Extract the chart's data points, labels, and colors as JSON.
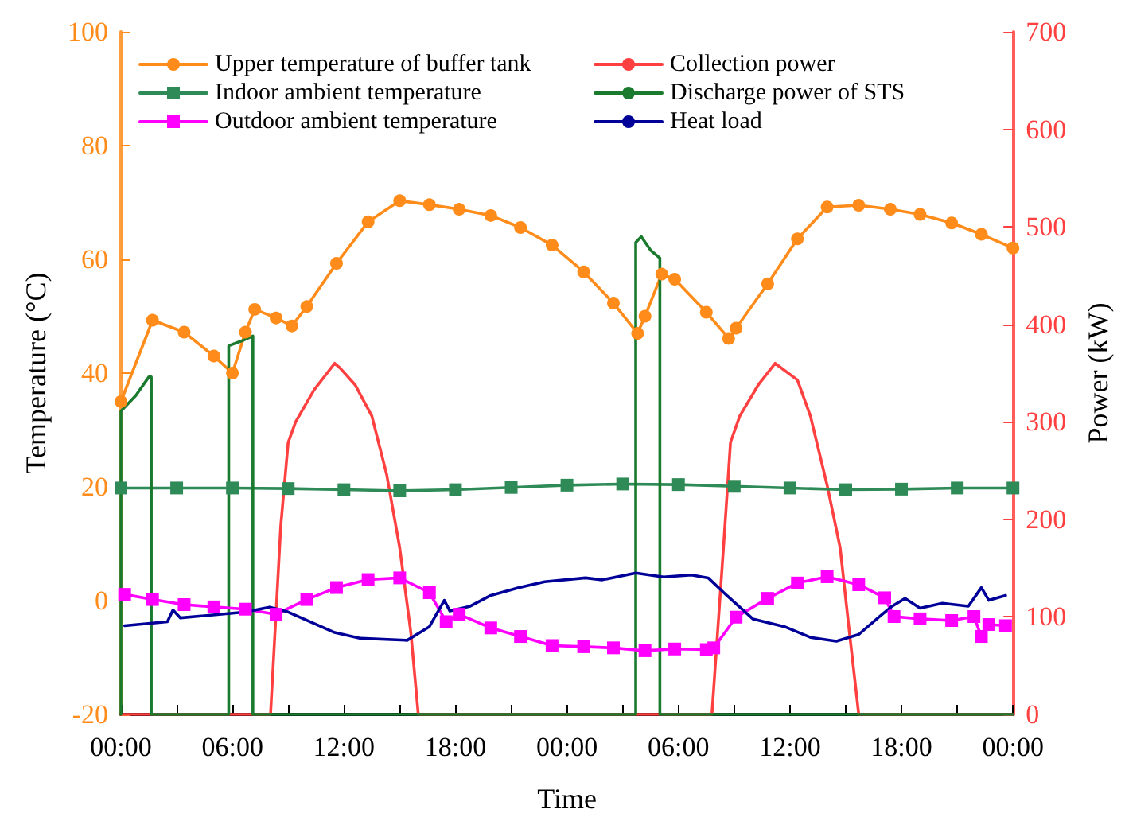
{
  "chart_data": {
    "type": "line",
    "xlabel": "Time",
    "ylabel": "Temperature (°C)",
    "y2label": "Power (kW)",
    "legend": "top",
    "grid": false,
    "xlim": [
      "--01-01T00:00",
      "--01-03T00:00"
    ],
    "xticks": [
      {
        "value": "--01-01T00:00",
        "label": "00:00"
      },
      {
        "value": "--01-01T03:00",
        "label": null
      },
      {
        "value": "--01-01T06:00",
        "label": "06:00"
      },
      {
        "value": "--01-01T09:00",
        "label": null
      },
      {
        "value": "--01-01T12:00",
        "label": "12:00"
      },
      {
        "value": "--01-01T15:00",
        "label": null
      },
      {
        "value": "--01-01T18:00",
        "label": "18:00"
      },
      {
        "value": "--01-01T21:00",
        "label": null
      },
      {
        "value": "--01-02T00:00",
        "label": "00:00"
      },
      {
        "value": "--01-02T03:00",
        "label": null
      },
      {
        "value": "--01-02T06:00",
        "label": "06:00"
      },
      {
        "value": "--01-02T09:00",
        "label": null
      },
      {
        "value": "--01-02T12:00",
        "label": "12:00"
      },
      {
        "value": "--01-02T15:00",
        "label": null
      },
      {
        "value": "--01-02T18:00",
        "label": "18:00"
      },
      {
        "value": "--01-02T21:00",
        "label": null
      },
      {
        "value": "--01-03T00:00",
        "label": "00:00"
      }
    ],
    "ylim": [
      -20,
      100
    ],
    "yticks": [
      -20,
      0,
      20,
      40,
      60,
      80,
      100
    ],
    "y2lim": [
      0,
      700
    ],
    "y2ticks": [
      0,
      100,
      200,
      300,
      400,
      500,
      600,
      700
    ],
    "series": [
      {
        "name": "Upper temperature of buffer tank",
        "color": "#ff8c1a",
        "marker": "circle",
        "x": [
          "--01-01T00:00",
          "--01-01T01:42",
          "--01-01T03:24",
          "--01-01T05:00",
          "--01-01T06:00",
          "--01-01T06:42",
          "--01-01T07:12",
          "--01-01T08:21",
          "--01-01T09:12",
          "--01-01T10:00",
          "--01-01T11:36",
          "--01-01T13:18",
          "--01-01T15:00",
          "--01-01T16:36",
          "--01-01T18:12",
          "--01-01T19:54",
          "--01-01T21:30",
          "--01-01T23:12",
          "--01-02T00:54",
          "--01-02T02:30",
          "--01-02T03:48",
          "--01-02T04:12",
          "--01-02T05:06",
          "--01-02T05:48",
          "--01-02T07:30",
          "--01-02T08:42",
          "--01-02T09:06",
          "--01-02T10:48",
          "--01-02T12:24",
          "--01-02T14:00",
          "--01-02T15:42",
          "--01-02T17:24",
          "--01-02T19:00",
          "--01-02T20:42",
          "--01-02T22:18",
          "--01-03T00:00"
        ],
        "values": [
          35,
          49.3,
          47.2,
          43,
          40,
          47.2,
          51.2,
          49.7,
          48.3,
          51.7,
          59.3,
          66.6,
          70.3,
          69.6,
          68.8,
          67.7,
          65.6,
          62.5,
          57.8,
          52.3,
          47,
          50,
          57.4,
          56.5,
          50.7,
          46.1,
          47.9,
          55.7,
          63.6,
          69.2,
          69.5,
          68.8,
          67.9,
          66.4,
          64.4,
          62
        ]
      },
      {
        "name": "Collection power",
        "color": "#ff4040",
        "axis": "y2",
        "marker": "none",
        "x": [
          "--01-01T00:00",
          "--01-01T08:03",
          "--01-01T08:36",
          "--01-01T09:00",
          "--01-01T09:24",
          "--01-01T10:24",
          "--01-01T11:30",
          "--01-01T11:48",
          "--01-01T12:36",
          "--01-01T13:30",
          "--01-01T14:18",
          "--01-01T15:00",
          "--01-01T15:36",
          "--01-01T16:00",
          "--01-02T07:48",
          "--01-02T08:24",
          "--01-02T08:48",
          "--01-02T09:18",
          "--01-02T10:18",
          "--01-02T11:12",
          "--01-02T12:24",
          "--01-02T13:06",
          "--01-02T14:00",
          "--01-02T14:42",
          "--01-02T15:12",
          "--01-02T15:42",
          "--01-03T00:00"
        ],
        "values": [
          0,
          0,
          193,
          279,
          300,
          333,
          360,
          355,
          338,
          306,
          246,
          171,
          84,
          0,
          0,
          165,
          279,
          306,
          338,
          360,
          343,
          306,
          235,
          171,
          84,
          0,
          0
        ]
      },
      {
        "name": "Indoor ambient temperature",
        "color": "#2e8b57",
        "marker": "square",
        "x": [
          "--01-01T00:00",
          "--01-01T03:00",
          "--01-01T06:00",
          "--01-01T09:00",
          "--01-01T12:00",
          "--01-01T15:00",
          "--01-01T18:00",
          "--01-01T21:00",
          "--01-02T00:00",
          "--01-02T03:00",
          "--01-02T06:00",
          "--01-02T09:00",
          "--01-02T12:00",
          "--01-02T15:00",
          "--01-02T18:00",
          "--01-02T21:00",
          "--01-03T00:00"
        ],
        "values": [
          19.8,
          19.8,
          19.8,
          19.7,
          19.5,
          19.3,
          19.5,
          19.9,
          20.3,
          20.5,
          20.4,
          20.1,
          19.8,
          19.5,
          19.6,
          19.8,
          19.8
        ]
      },
      {
        "name": "Discharge power of STS",
        "color": "#1a7a2e",
        "axis": "y2",
        "marker": "none",
        "x": [
          "--01-01T00:00",
          "--01-01T00:00",
          "--01-01T00:48",
          "--01-01T01:30",
          "--01-01T01:38",
          "--01-01T01:38",
          "--01-01T05:48",
          "--01-01T05:48",
          "--01-01T06:30",
          "--01-01T07:06",
          "--01-01T07:06",
          "--01-02T03:42",
          "--01-02T03:42",
          "--01-02T04:00",
          "--01-02T04:30",
          "--01-02T05:00",
          "--01-02T05:00",
          "--01-03T00:00"
        ],
        "values": [
          0,
          311,
          327,
          346,
          346,
          0,
          0,
          378,
          383,
          388,
          0,
          0,
          484,
          490,
          476,
          468,
          0,
          0
        ]
      },
      {
        "name": "Outdoor ambient temperature",
        "color": "#ff00ff",
        "marker": "square",
        "x": [
          "--01-01T00:12",
          "--01-01T01:42",
          "--01-01T03:24",
          "--01-01T05:00",
          "--01-01T06:42",
          "--01-01T08:21",
          "--01-01T10:00",
          "--01-01T11:36",
          "--01-01T13:18",
          "--01-01T15:00",
          "--01-01T16:36",
          "--01-01T17:30",
          "--01-01T18:12",
          "--01-01T19:54",
          "--01-01T21:30",
          "--01-01T23:12",
          "--01-02T00:54",
          "--01-02T02:30",
          "--01-02T04:12",
          "--01-02T05:48",
          "--01-02T07:30",
          "--01-02T07:54",
          "--01-02T09:06",
          "--01-02T10:48",
          "--01-02T12:24",
          "--01-02T14:00",
          "--01-02T15:42",
          "--01-02T17:06",
          "--01-02T17:36",
          "--01-02T19:00",
          "--01-02T20:42",
          "--01-02T21:54",
          "--01-02T22:18",
          "--01-02T22:42",
          "--01-02T23:36"
        ],
        "values": [
          1.1,
          0.2,
          -0.7,
          -1.1,
          -1.5,
          -2.4,
          0.2,
          2.3,
          3.7,
          4.0,
          1.4,
          -3.7,
          -2.4,
          -4.8,
          -6.3,
          -7.9,
          -8.1,
          -8.3,
          -8.8,
          -8.5,
          -8.6,
          -8.3,
          -2.9,
          0.4,
          3.1,
          4.2,
          2.8,
          0.5,
          -2.8,
          -3.2,
          -3.5,
          -2.8,
          -6.3,
          -4.2,
          -4.4
        ]
      },
      {
        "name": "Heat load",
        "color": "#000099",
        "axis": "y2",
        "marker": "none",
        "x": [
          "--01-01T00:12",
          "--01-01T02:30",
          "--01-01T02:48",
          "--01-01T03:12",
          "--01-01T06:42",
          "--01-01T08:00",
          "--01-01T09:00",
          "--01-01T11:30",
          "--01-01T12:54",
          "--01-01T15:24",
          "--01-01T16:36",
          "--01-01T17:24",
          "--01-01T17:42",
          "--01-01T18:48",
          "--01-01T19:54",
          "--01-01T21:24",
          "--01-01T22:48",
          "--01-02T01:00",
          "--01-02T01:54",
          "--01-02T03:42",
          "--01-02T05:12",
          "--01-02T06:42",
          "--01-02T07:36",
          "--01-02T08:36",
          "--01-02T10:00",
          "--01-02T11:42",
          "--01-02T13:06",
          "--01-02T14:30",
          "--01-02T15:42",
          "--01-02T16:48",
          "--01-02T17:30",
          "--01-02T18:12",
          "--01-02T19:00",
          "--01-02T20:12",
          "--01-02T21:36",
          "--01-02T22:18",
          "--01-02T22:42",
          "--01-02T23:36"
        ],
        "values": [
          91,
          95,
          107,
          99,
          105,
          110,
          105,
          84,
          78,
          76,
          90,
          117,
          106,
          111,
          122,
          130,
          136,
          140,
          138,
          145,
          141,
          143,
          140,
          122,
          98,
          90,
          79,
          75,
          82,
          100,
          111,
          119,
          109,
          114,
          111,
          130,
          117,
          122
        ]
      }
    ]
  }
}
